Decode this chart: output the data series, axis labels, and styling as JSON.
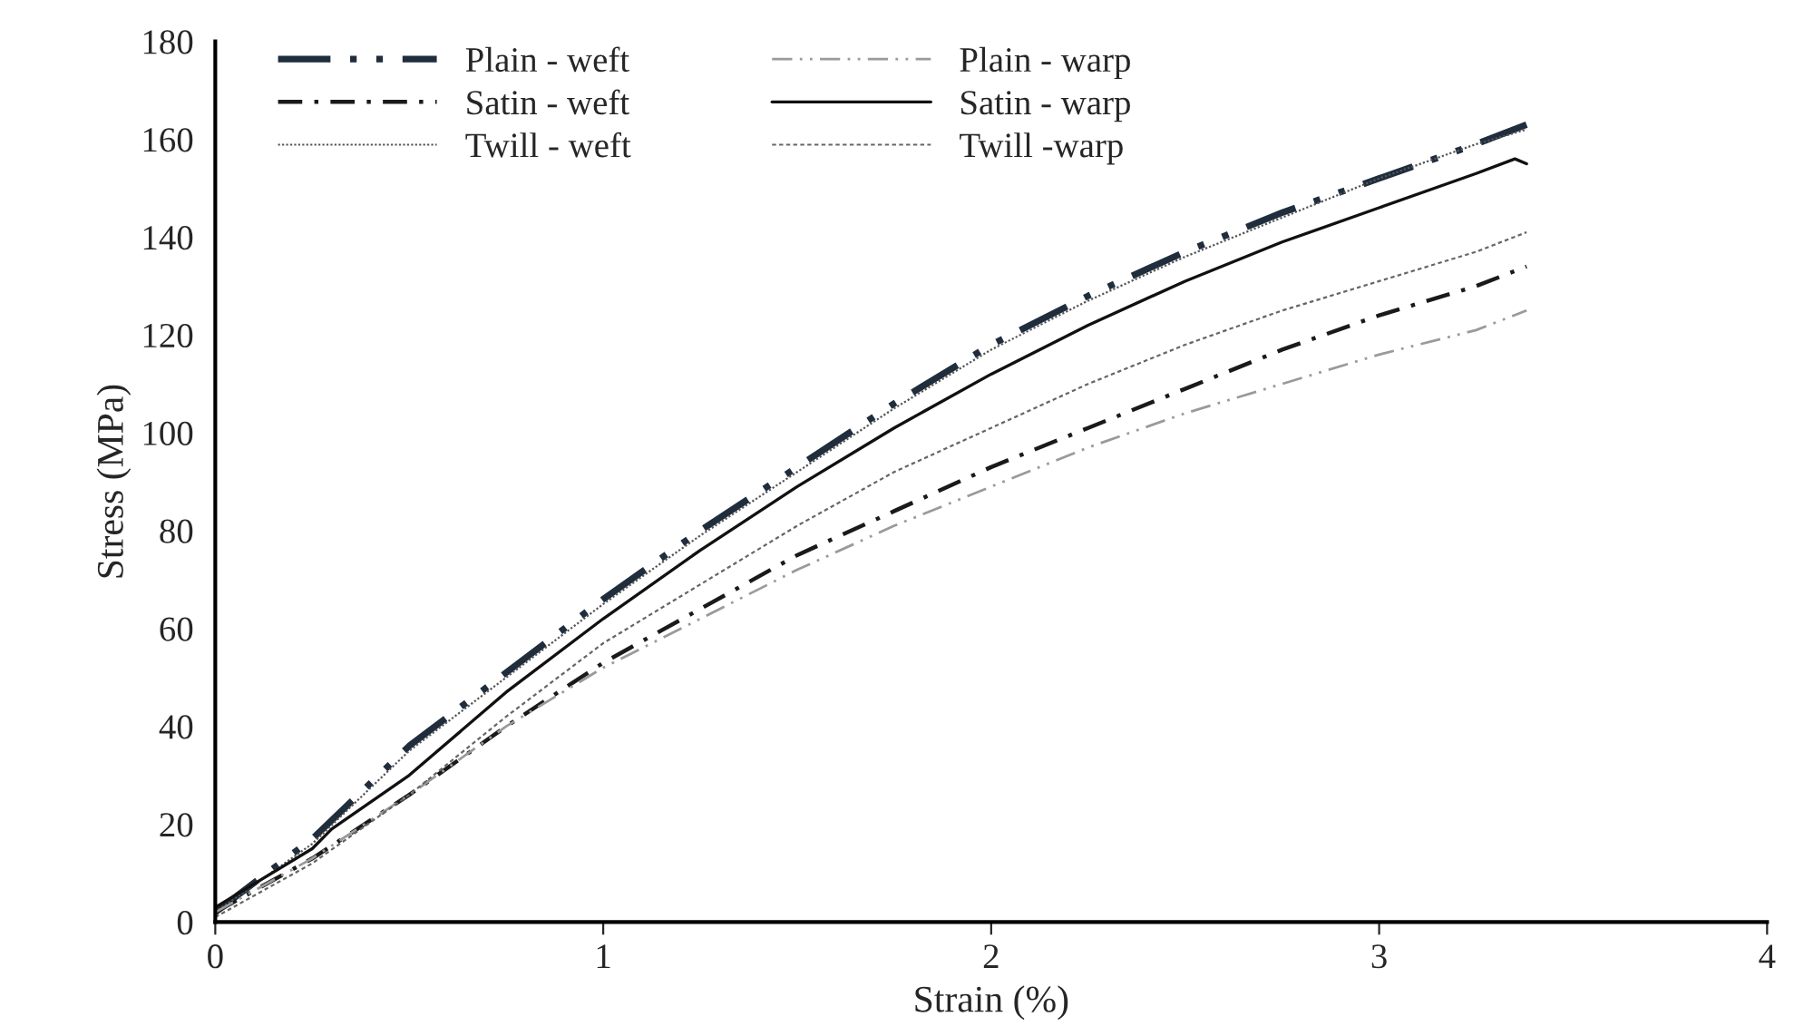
{
  "chart_data": {
    "type": "line",
    "xlabel": "Strain (%)",
    "ylabel": "Stress (MPa)",
    "xlim": [
      0,
      4
    ],
    "ylim": [
      0,
      180
    ],
    "xticks": [
      0,
      1,
      2,
      3,
      4
    ],
    "yticks": [
      0,
      20,
      40,
      60,
      80,
      100,
      120,
      140,
      160,
      180
    ],
    "grid": false,
    "legend": "top left",
    "marker": "none",
    "series": [
      {
        "name": "Plain - weft",
        "color": "#1f2d3d",
        "line_style": "dashdotdot",
        "x": [
          0,
          0.25,
          0.5,
          0.75,
          1,
          1.25,
          1.5,
          1.75,
          2,
          2.25,
          2.5,
          2.75,
          3,
          3.25,
          3.38
        ],
        "values": [
          2,
          17,
          36,
          51,
          66,
          80,
          93,
          106,
          118,
          128,
          137,
          145,
          152,
          159,
          163
        ]
      },
      {
        "name": "Satin - weft",
        "color": "#1a1a1a",
        "line_style": "dashdot",
        "x": [
          0,
          0.25,
          0.5,
          0.75,
          1,
          1.25,
          1.5,
          1.75,
          2,
          2.25,
          2.5,
          2.75,
          3,
          3.25,
          3.38
        ],
        "values": [
          2,
          13,
          26,
          40,
          53,
          64,
          75,
          84,
          93,
          101,
          109,
          117,
          124,
          130,
          134
        ]
      },
      {
        "name": "Twill - weft",
        "color": "#555555",
        "line_style": "dotted",
        "x": [
          0,
          0.25,
          0.5,
          0.75,
          1,
          1.25,
          1.5,
          1.75,
          2,
          2.25,
          2.5,
          2.75,
          3,
          3.25,
          3.38
        ],
        "values": [
          2,
          16,
          35,
          50,
          65,
          79,
          92,
          105,
          117,
          127,
          136,
          144,
          152,
          159,
          162
        ]
      },
      {
        "name": "Plain - warp",
        "color": "#9a9a9a",
        "line_style": "dashdotdot",
        "x": [
          0,
          0.25,
          0.5,
          0.75,
          1,
          1.25,
          1.5,
          1.75,
          2,
          2.25,
          2.5,
          2.75,
          3,
          3.25,
          3.38
        ],
        "values": [
          2,
          13,
          26,
          40,
          52,
          62,
          72,
          81,
          89,
          97,
          104,
          110,
          116,
          121,
          125
        ]
      },
      {
        "name": "Satin - warp",
        "color": "#111111",
        "line_style": "solid",
        "x": [
          0,
          0.25,
          0.3,
          0.5,
          0.75,
          1,
          1.25,
          1.5,
          1.75,
          2,
          2.25,
          2.5,
          2.75,
          3,
          3.25,
          3.35,
          3.38
        ],
        "values": [
          3,
          15,
          19,
          30,
          47,
          62,
          76,
          89,
          101,
          112,
          122,
          131,
          139,
          146,
          153,
          156,
          155
        ]
      },
      {
        "name": "Twill -warp",
        "color": "#666666",
        "line_style": "dashed",
        "x": [
          0,
          0.25,
          0.5,
          0.75,
          1,
          1.25,
          1.5,
          1.75,
          2,
          2.25,
          2.5,
          2.75,
          3,
          3.25,
          3.38
        ],
        "values": [
          1,
          12,
          26,
          42,
          57,
          69,
          81,
          92,
          101,
          110,
          118,
          125,
          131,
          137,
          141
        ]
      }
    ]
  }
}
